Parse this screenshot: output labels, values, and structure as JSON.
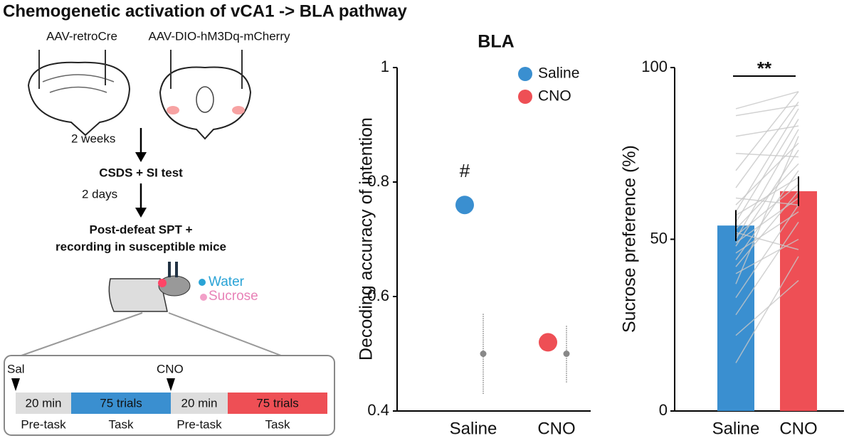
{
  "title": "Chemogenetic activation of vCA1 -> BLA pathway",
  "schematic": {
    "virus_left": "AAV-retroCre",
    "virus_right": "AAV-DIO-hM3Dq-mCherry",
    "step1_delay": "2 weeks",
    "step1": "CSDS + SI test",
    "step2_delay": "2 days",
    "step2_line1": "Post-defeat SPT +",
    "step2_line2": "recording in susceptible mice",
    "water": "Water",
    "sucrose": "Sucrose",
    "timeline": {
      "injections": [
        "Sal",
        "CNO"
      ],
      "blocks": [
        "20 min",
        "75 trials",
        "20 min",
        "75 trials"
      ],
      "phases": [
        "Pre-task",
        "Task",
        "Pre-task",
        "Task"
      ]
    }
  },
  "chart_data": [
    {
      "type": "dot",
      "title": "BLA",
      "y_label": "Decoding accuracy of intention",
      "categories": [
        "Saline",
        "CNO"
      ],
      "series": [
        {
          "name": "Saline",
          "color": "#3a8fd0",
          "values": [
            0.76,
            null
          ]
        },
        {
          "name": "CNO",
          "color": "#ee4f55",
          "values": [
            null,
            0.52
          ]
        }
      ],
      "shuffle": {
        "color": "#888888",
        "values": [
          0.5,
          0.5
        ],
        "low": [
          0.43,
          0.45
        ],
        "high": [
          0.57,
          0.55
        ]
      },
      "annotation": "#",
      "ylim": [
        0.4,
        1
      ],
      "yticks": [
        0.4,
        0.6,
        0.8,
        1
      ],
      "legend": "top-right"
    },
    {
      "type": "bar",
      "y_label": "Sucrose preference (%)",
      "categories": [
        "Saline",
        "CNO"
      ],
      "colors": [
        "#3a8fd0",
        "#ee4f55"
      ],
      "values": [
        54,
        64
      ],
      "errors": [
        4.5,
        4.3
      ],
      "annotation": "**",
      "ylim": [
        0,
        100
      ],
      "yticks": [
        0,
        50,
        100
      ],
      "pairs": {
        "color": "#c8c8c8",
        "saline": [
          14,
          22,
          28,
          33,
          37,
          40,
          42,
          44,
          46,
          48,
          49,
          50,
          51,
          52,
          53,
          55,
          57,
          58,
          60,
          62,
          65,
          70,
          75,
          80,
          86,
          88
        ],
        "cno": [
          45,
          38,
          55,
          60,
          80,
          50,
          64,
          70,
          58,
          76,
          62,
          82,
          66,
          47,
          72,
          85,
          68,
          88,
          78,
          60,
          90,
          93,
          74,
          83,
          89,
          93
        ]
      }
    }
  ]
}
